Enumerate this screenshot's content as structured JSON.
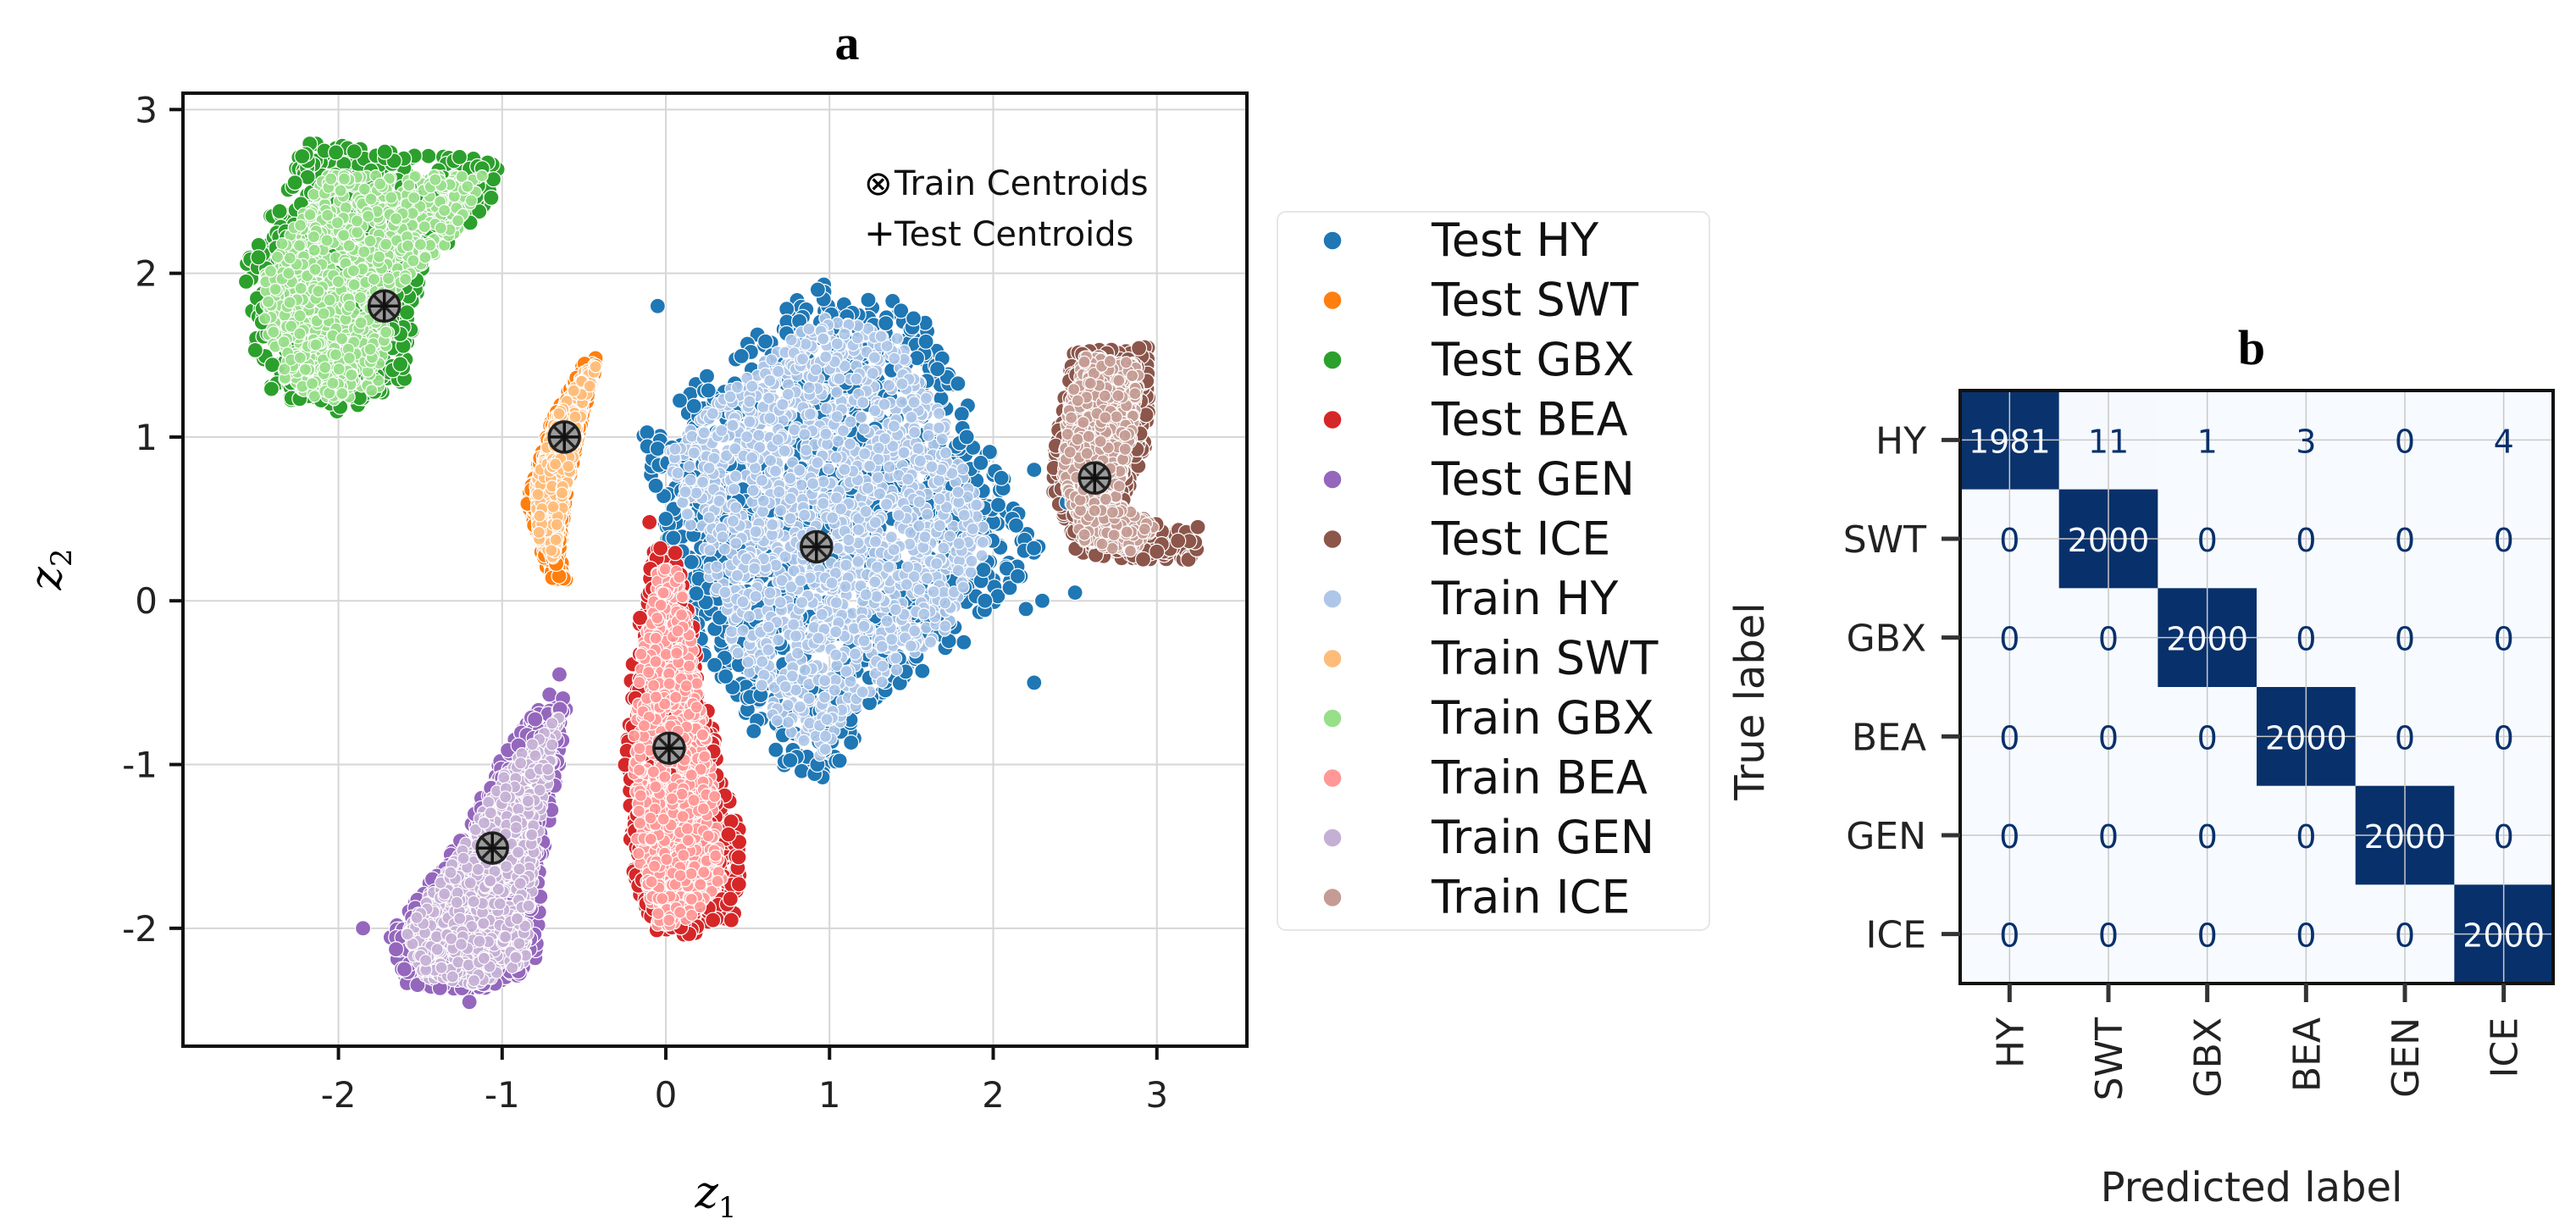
{
  "chart_data": [
    {
      "type": "scatter",
      "panel_label": "a",
      "xlabel_var": "z",
      "xlabel_sub": "1",
      "ylabel_var": "z",
      "ylabel_sub": "2",
      "xlim": [
        -2.95,
        3.55
      ],
      "ylim": [
        -2.72,
        3.1
      ],
      "xticks": [
        -2,
        -1,
        0,
        1,
        2,
        3
      ],
      "yticks": [
        -2,
        -1,
        0,
        1,
        2,
        3
      ],
      "grid": true,
      "legend_position": "right",
      "annotations": [
        {
          "symbol": "⊗",
          "label": "Train Centroids"
        },
        {
          "symbol": "+",
          "label": "Test Centroids"
        }
      ],
      "series": [
        {
          "name": "Test HY",
          "color": "#1f77b4",
          "set": "test",
          "class": "HY"
        },
        {
          "name": "Test SWT",
          "color": "#ff7f0e",
          "set": "test",
          "class": "SWT"
        },
        {
          "name": "Test GBX",
          "color": "#2ca02c",
          "set": "test",
          "class": "GBX"
        },
        {
          "name": "Test BEA",
          "color": "#d62728",
          "set": "test",
          "class": "BEA"
        },
        {
          "name": "Test GEN",
          "color": "#9467bd",
          "set": "test",
          "class": "GEN"
        },
        {
          "name": "Test ICE",
          "color": "#8c564b",
          "set": "test",
          "class": "ICE"
        },
        {
          "name": "Train HY",
          "color": "#aec7e8",
          "set": "train",
          "class": "HY"
        },
        {
          "name": "Train SWT",
          "color": "#ffbb78",
          "set": "train",
          "class": "SWT"
        },
        {
          "name": "Train GBX",
          "color": "#98df8a",
          "set": "train",
          "class": "GBX"
        },
        {
          "name": "Train BEA",
          "color": "#ff9896",
          "set": "train",
          "class": "BEA"
        },
        {
          "name": "Train GEN",
          "color": "#c5b0d5",
          "set": "train",
          "class": "GEN"
        },
        {
          "name": "Train ICE",
          "color": "#c49c94",
          "set": "train",
          "class": "ICE"
        }
      ],
      "clusters": [
        {
          "class": "GBX",
          "test": [
            [
              -2.6,
              2.0
            ],
            [
              -2.2,
              2.8
            ],
            [
              -1.7,
              2.75
            ],
            [
              -1.0,
              2.7
            ],
            [
              -1.05,
              2.45
            ],
            [
              -1.5,
              2.0
            ],
            [
              -1.6,
              1.3
            ],
            [
              -2.0,
              1.15
            ],
            [
              -2.4,
              1.25
            ],
            [
              -2.55,
              1.6
            ]
          ],
          "train": [
            [
              -2.45,
              2.0
            ],
            [
              -2.1,
              2.6
            ],
            [
              -1.6,
              2.6
            ],
            [
              -1.1,
              2.6
            ],
            [
              -1.3,
              2.2
            ],
            [
              -1.65,
              1.9
            ],
            [
              -1.75,
              1.3
            ],
            [
              -2.05,
              1.2
            ],
            [
              -2.35,
              1.35
            ],
            [
              -2.45,
              1.7
            ]
          ]
        },
        {
          "class": "SWT",
          "test": [
            [
              -0.4,
              1.5
            ],
            [
              -0.45,
              1.35
            ],
            [
              -0.6,
              0.7
            ],
            [
              -0.65,
              0.3
            ],
            [
              -0.6,
              0.1
            ],
            [
              -0.72,
              0.15
            ],
            [
              -0.85,
              0.6
            ],
            [
              -0.7,
              1.1
            ],
            [
              -0.5,
              1.45
            ]
          ],
          "train": [
            [
              -0.42,
              1.45
            ],
            [
              -0.5,
              1.2
            ],
            [
              -0.63,
              0.55
            ],
            [
              -0.68,
              0.25
            ],
            [
              -0.78,
              0.35
            ],
            [
              -0.8,
              0.7
            ],
            [
              -0.68,
              1.1
            ],
            [
              -0.5,
              1.4
            ]
          ]
        },
        {
          "class": "HY",
          "test": [
            [
              -0.15,
              1.0
            ],
            [
              0.3,
              1.45
            ],
            [
              0.95,
              1.95
            ],
            [
              1.55,
              1.8
            ],
            [
              1.85,
              1.2
            ],
            [
              2.2,
              0.5
            ],
            [
              2.3,
              0.3
            ],
            [
              1.8,
              -0.3
            ],
            [
              1.3,
              -0.6
            ],
            [
              1.0,
              -1.1
            ],
            [
              0.7,
              -1.0
            ],
            [
              0.5,
              -0.75
            ],
            [
              0.2,
              -0.3
            ],
            [
              0.0,
              0.2
            ],
            [
              -0.05,
              0.6
            ]
          ],
          "train": [
            [
              0.0,
              0.9
            ],
            [
              0.45,
              1.35
            ],
            [
              0.95,
              1.75
            ],
            [
              1.45,
              1.6
            ],
            [
              1.7,
              1.1
            ],
            [
              2.0,
              0.4
            ],
            [
              1.7,
              -0.2
            ],
            [
              1.2,
              -0.6
            ],
            [
              0.95,
              -0.95
            ],
            [
              0.7,
              -0.8
            ],
            [
              0.45,
              -0.4
            ],
            [
              0.25,
              0.2
            ],
            [
              0.1,
              0.6
            ]
          ]
        },
        {
          "class": "BEA",
          "test": [
            [
              -0.1,
              0.3
            ],
            [
              0.05,
              0.35
            ],
            [
              0.2,
              -0.3
            ],
            [
              0.35,
              -1.1
            ],
            [
              0.45,
              -1.4
            ],
            [
              0.45,
              -1.9
            ],
            [
              0.2,
              -2.05
            ],
            [
              -0.05,
              -2.05
            ],
            [
              -0.2,
              -1.7
            ],
            [
              -0.25,
              -1.0
            ],
            [
              -0.2,
              -0.3
            ]
          ],
          "train": [
            [
              -0.05,
              0.2
            ],
            [
              0.08,
              0.2
            ],
            [
              0.2,
              -0.5
            ],
            [
              0.3,
              -1.2
            ],
            [
              0.35,
              -1.7
            ],
            [
              0.15,
              -1.95
            ],
            [
              -0.05,
              -2.0
            ],
            [
              -0.18,
              -1.6
            ],
            [
              -0.2,
              -0.9
            ],
            [
              -0.15,
              -0.3
            ]
          ]
        },
        {
          "class": "GEN",
          "test": [
            [
              -0.6,
              -0.6
            ],
            [
              -0.7,
              -0.55
            ],
            [
              -1.0,
              -0.95
            ],
            [
              -1.35,
              -1.6
            ],
            [
              -1.7,
              -2.05
            ],
            [
              -1.6,
              -2.35
            ],
            [
              -1.2,
              -2.4
            ],
            [
              -0.8,
              -2.25
            ],
            [
              -0.75,
              -1.6
            ],
            [
              -0.65,
              -1.0
            ]
          ],
          "train": [
            [
              -0.65,
              -0.7
            ],
            [
              -0.95,
              -1.0
            ],
            [
              -1.3,
              -1.6
            ],
            [
              -1.6,
              -2.0
            ],
            [
              -1.5,
              -2.3
            ],
            [
              -1.15,
              -2.35
            ],
            [
              -0.85,
              -2.2
            ],
            [
              -0.8,
              -1.6
            ],
            [
              -0.7,
              -1.0
            ]
          ]
        },
        {
          "class": "ICE",
          "test": [
            [
              2.5,
              1.55
            ],
            [
              2.95,
              1.55
            ],
            [
              2.95,
              1.0
            ],
            [
              2.8,
              0.55
            ],
            [
              3.05,
              0.45
            ],
            [
              3.3,
              0.4
            ],
            [
              3.2,
              0.25
            ],
            [
              2.8,
              0.25
            ],
            [
              2.5,
              0.3
            ],
            [
              2.35,
              0.7
            ],
            [
              2.4,
              1.1
            ]
          ],
          "train": [
            [
              2.55,
              1.5
            ],
            [
              2.9,
              1.45
            ],
            [
              2.85,
              1.0
            ],
            [
              2.75,
              0.6
            ],
            [
              3.0,
              0.45
            ],
            [
              2.85,
              0.3
            ],
            [
              2.55,
              0.35
            ],
            [
              2.42,
              0.75
            ],
            [
              2.45,
              1.15
            ]
          ]
        }
      ],
      "stray_points": [
        {
          "class": "HY",
          "xy": [
            [
              -0.05,
              1.8
            ],
            [
              2.25,
              0.8
            ],
            [
              2.05,
              0.75
            ],
            [
              2.5,
              0.05
            ],
            [
              2.3,
              0.0
            ],
            [
              2.2,
              -0.05
            ],
            [
              2.15,
              0.15
            ],
            [
              2.25,
              -0.5
            ],
            [
              2.45,
              0.6
            ],
            [
              1.95,
              0.0
            ],
            [
              0.0,
              0.5
            ]
          ]
        },
        {
          "class": "BEA",
          "xy": [
            [
              -0.1,
              0.48
            ],
            [
              0.3,
              -1.6
            ],
            [
              0.4,
              -1.95
            ]
          ]
        },
        {
          "class": "GEN",
          "xy": [
            [
              -0.65,
              -0.45
            ],
            [
              -1.85,
              -2.0
            ],
            [
              -1.2,
              -2.45
            ]
          ]
        },
        {
          "class": "ICE",
          "xy": [
            [
              3.25,
              0.45
            ],
            [
              3.0,
              0.3
            ]
          ]
        }
      ],
      "centroids": [
        {
          "class": "GBX",
          "train": [
            -1.72,
            1.8
          ],
          "test": [
            -1.72,
            1.8
          ]
        },
        {
          "class": "SWT",
          "train": [
            -0.62,
            1.0
          ],
          "test": [
            -0.62,
            1.0
          ]
        },
        {
          "class": "HY",
          "train": [
            0.92,
            0.33
          ],
          "test": [
            0.92,
            0.33
          ]
        },
        {
          "class": "BEA",
          "train": [
            0.02,
            -0.9
          ],
          "test": [
            0.02,
            -0.9
          ]
        },
        {
          "class": "GEN",
          "train": [
            -1.06,
            -1.51
          ],
          "test": [
            -1.06,
            -1.51
          ]
        },
        {
          "class": "ICE",
          "train": [
            2.62,
            0.75
          ],
          "test": [
            2.62,
            0.75
          ]
        }
      ]
    },
    {
      "type": "heatmap",
      "panel_label": "b",
      "xlabel": "Predicted label",
      "ylabel": "True label",
      "labels": [
        "HY",
        "SWT",
        "GBX",
        "BEA",
        "GEN",
        "ICE"
      ],
      "matrix": [
        [
          1981,
          11,
          1,
          3,
          0,
          4
        ],
        [
          0,
          2000,
          0,
          0,
          0,
          0
        ],
        [
          0,
          0,
          2000,
          0,
          0,
          0
        ],
        [
          0,
          0,
          0,
          2000,
          0,
          0
        ],
        [
          0,
          0,
          0,
          0,
          2000,
          0
        ],
        [
          0,
          0,
          0,
          0,
          0,
          2000
        ]
      ],
      "vmax": 2000,
      "colormap": [
        "#f7fbff",
        "#08306b"
      ]
    }
  ]
}
